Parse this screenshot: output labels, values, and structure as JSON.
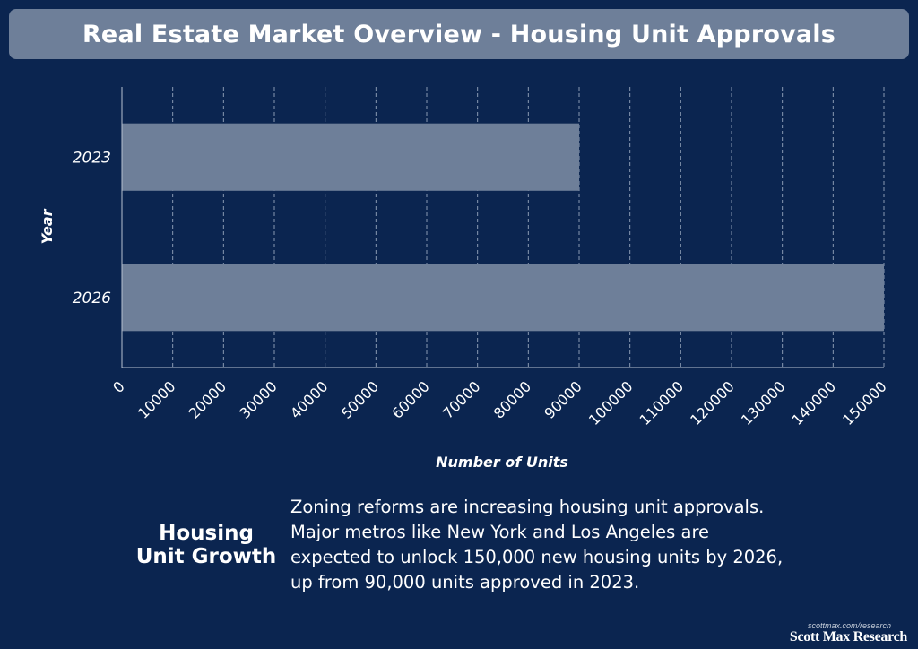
{
  "header": {
    "title": "Real Estate Market Overview - Housing Unit Approvals"
  },
  "chart_data": {
    "type": "bar",
    "orientation": "horizontal",
    "categories": [
      "2023",
      "2026"
    ],
    "values": [
      90000,
      150000
    ],
    "xlabel": "Number of Units",
    "ylabel": "Year",
    "xlim": [
      0,
      150000
    ],
    "xticks": [
      0,
      10000,
      20000,
      30000,
      40000,
      50000,
      60000,
      70000,
      80000,
      90000,
      100000,
      110000,
      120000,
      130000,
      140000,
      150000
    ],
    "grid": "vertical-dashed",
    "bar_color": "#6e7f99"
  },
  "summary": {
    "heading_line1": "Housing",
    "heading_line2": "Unit Growth",
    "text": "Zoning reforms are increasing housing unit approvals. Major metros like New York and Los Angeles are expected to unlock 150,000 new housing units by 2026, up from 90,000 units approved in 2023."
  },
  "footer": {
    "url": "scottmax.com/research",
    "brand": "Scott Max Research"
  }
}
